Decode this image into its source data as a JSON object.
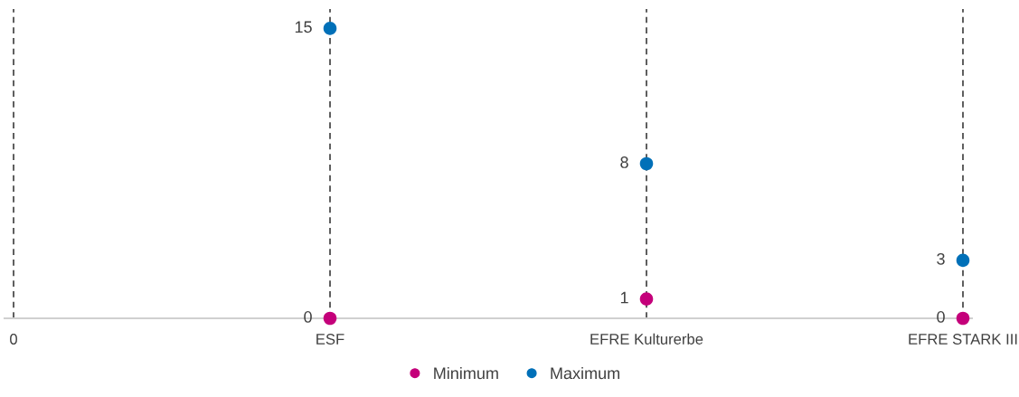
{
  "chart_data": {
    "type": "scatter",
    "categories": [
      "0",
      "ESF",
      "EFRE Kulturerbe",
      "EFRE STARK III"
    ],
    "series": [
      {
        "name": "Minimum",
        "color": "#c4007a",
        "values": [
          null,
          0,
          1,
          0
        ]
      },
      {
        "name": "Maximum",
        "color": "#0070b8",
        "values": [
          null,
          15,
          8,
          3
        ]
      }
    ],
    "ylim": [
      0,
      16
    ],
    "tick_labels": "x",
    "data_labels": true,
    "marker": "circle",
    "grid": false,
    "legend": "bottom",
    "ref_lines": [
      {
        "axis": "x",
        "value": "0",
        "color": "#404040",
        "line_style": "dashed"
      },
      {
        "axis": "x",
        "value": "ESF",
        "color": "#404040",
        "line_style": "dashed"
      },
      {
        "axis": "x",
        "value": "EFRE Kulturerbe",
        "color": "#404040",
        "line_style": "dashed"
      },
      {
        "axis": "x",
        "value": "EFRE STARK III",
        "color": "#404040",
        "line_style": "dashed"
      }
    ]
  }
}
